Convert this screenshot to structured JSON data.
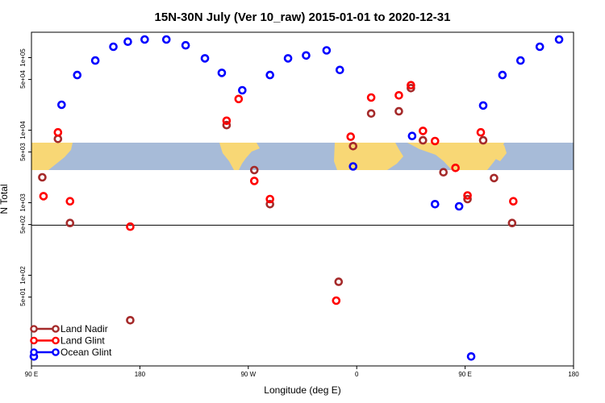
{
  "chart_data": {
    "type": "scatter",
    "title": "15N-30N July (Ver 10_raw)   2015-01-01 to 2020-12-31",
    "xlabel": "Longitude (deg E)",
    "ylabel": "N Total",
    "x_scale": "degrees east, 90E to 180 (wrapped, 450 degree span)",
    "y_scale": "log10",
    "xlim": [
      90,
      540
    ],
    "ylim_log10": [
      0.75,
      5.35
    ],
    "x_ticks": [
      {
        "value": 90,
        "label": "90 E"
      },
      {
        "value": 180,
        "label": "180"
      },
      {
        "value": 270,
        "label": "90 W"
      },
      {
        "value": 360,
        "label": "0"
      },
      {
        "value": 450,
        "label": "90 E"
      },
      {
        "value": 540,
        "label": "180"
      }
    ],
    "y_ticks": [
      {
        "log": 1.699,
        "label": "5e+01"
      },
      {
        "log": 2.0,
        "label": "1e+02"
      },
      {
        "log": 2.699,
        "label": "5e+02"
      },
      {
        "log": 3.0,
        "label": "1e+03"
      },
      {
        "log": 3.699,
        "label": "5e+03"
      },
      {
        "log": 4.0,
        "label": "1e+04"
      },
      {
        "log": 4.699,
        "label": "5e+04"
      },
      {
        "log": 5.0,
        "label": "1e+05"
      }
    ],
    "reference_line_log": 2.69,
    "map_band_log": [
      3.75,
      4.1
    ],
    "series": [
      {
        "name": "Land Nadir",
        "color": "#a52a2a",
        "points": [
          [
            99,
            3.35
          ],
          [
            112,
            3.88
          ],
          [
            122,
            2.72
          ],
          [
            172,
            1.38
          ],
          [
            252,
            4.07
          ],
          [
            275,
            3.45
          ],
          [
            288,
            2.98
          ],
          [
            345,
            1.91
          ],
          [
            357,
            3.78
          ],
          [
            372,
            4.23
          ],
          [
            395,
            4.26
          ],
          [
            405,
            4.58
          ],
          [
            415,
            3.86
          ],
          [
            432,
            3.42
          ],
          [
            452,
            3.05
          ],
          [
            465,
            3.86
          ],
          [
            474,
            3.34
          ],
          [
            489,
            2.72
          ]
        ]
      },
      {
        "name": "Land Glint",
        "color": "#ff0000",
        "points": [
          [
            100,
            3.09
          ],
          [
            112,
            3.97
          ],
          [
            122,
            3.02
          ],
          [
            172,
            2.67
          ],
          [
            252,
            4.13
          ],
          [
            262,
            4.43
          ],
          [
            275,
            3.3
          ],
          [
            288,
            3.05
          ],
          [
            343,
            1.65
          ],
          [
            355,
            3.91
          ],
          [
            372,
            4.45
          ],
          [
            395,
            4.48
          ],
          [
            405,
            4.62
          ],
          [
            415,
            3.99
          ],
          [
            425,
            3.85
          ],
          [
            442,
            3.48
          ],
          [
            452,
            3.1
          ],
          [
            463,
            3.97
          ],
          [
            490,
            3.02
          ]
        ]
      },
      {
        "name": "Ocean Glint",
        "color": "#0000ff",
        "points": [
          [
            92,
            0.88
          ],
          [
            115,
            4.35
          ],
          [
            128,
            4.76
          ],
          [
            143,
            4.96
          ],
          [
            158,
            5.15
          ],
          [
            170,
            5.22
          ],
          [
            184,
            5.25
          ],
          [
            202,
            5.25
          ],
          [
            218,
            5.17
          ],
          [
            234,
            4.99
          ],
          [
            248,
            4.79
          ],
          [
            265,
            4.55
          ],
          [
            288,
            4.76
          ],
          [
            303,
            4.99
          ],
          [
            318,
            5.03
          ],
          [
            335,
            5.1
          ],
          [
            346,
            4.83
          ],
          [
            357,
            3.5
          ],
          [
            406,
            3.92
          ],
          [
            425,
            2.98
          ],
          [
            445,
            2.95
          ],
          [
            455,
            0.88
          ],
          [
            465,
            4.34
          ],
          [
            481,
            4.76
          ],
          [
            496,
            4.96
          ],
          [
            512,
            5.15
          ],
          [
            528,
            5.25
          ]
        ]
      }
    ],
    "legend": {
      "position": "bottom-left",
      "entries": [
        {
          "label": "Land Nadir",
          "color": "#a52a2a"
        },
        {
          "label": "Land Glint",
          "color": "#ff0000"
        },
        {
          "label": "Ocean Glint",
          "color": "#0000ff"
        }
      ]
    }
  }
}
